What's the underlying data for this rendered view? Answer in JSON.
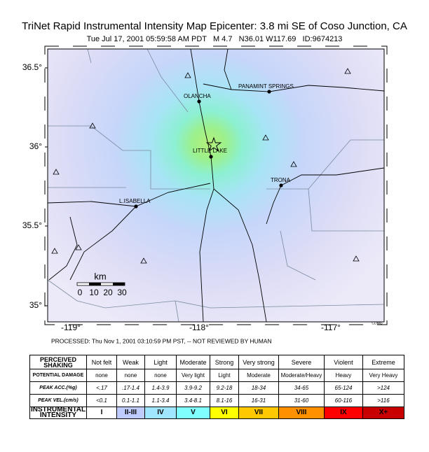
{
  "header": {
    "title": "TriNet Rapid Instrumental Intensity Map Epicenter: 3.8 mi SE of Coso Junction, CA",
    "subtitle": "Tue Jul 17, 2001 05:59:58 AM PDT   M 4.7   N36.01 W117.69   ID:9674213"
  },
  "map": {
    "lat_labels": [
      "36.5°",
      "36°",
      "35.5°",
      "35°"
    ],
    "lon_labels": [
      "-119°",
      "-118°",
      "-117°"
    ],
    "places": [
      "OLANCHA",
      "PANAMINT SPRINGS",
      "LITTLE LAKE",
      "TRONA",
      "L.ISABELLA"
    ],
    "scale_unit": "km",
    "scale_ticks": [
      "0",
      "10",
      "20",
      "30"
    ],
    "credit": "CDMG"
  },
  "processed": "PROCESSED: Thu Nov 1, 2001 03:10:59 PM PST, -- NOT REVIEWED BY HUMAN",
  "table": {
    "rows": [
      [
        "PERCEIVED SHAKING",
        "Not felt",
        "Weak",
        "Light",
        "Moderate",
        "Strong",
        "Very strong",
        "Severe",
        "Violent",
        "Extreme"
      ],
      [
        "POTENTIAL DAMAGE",
        "none",
        "none",
        "none",
        "Very light",
        "Light",
        "Moderate",
        "Moderate/Heavy",
        "Heavy",
        "Very Heavy"
      ],
      [
        "PEAK ACC.(%g)",
        "<.17",
        ".17-1.4",
        "1.4-3.9",
        "3.9-9.2",
        "9.2-18",
        "18-34",
        "34-65",
        "65-124",
        ">124"
      ],
      [
        "PEAK VEL.(cm/s)",
        "<0.1",
        "0.1-1.1",
        "1.1-3.4",
        "3.4-8.1",
        "8.1-16",
        "16-31",
        "31-60",
        "60-116",
        ">116"
      ],
      [
        "INSTRUMENTAL INTENSITY",
        "I",
        "II-III",
        "IV",
        "V",
        "VI",
        "VII",
        "VIII",
        "IX",
        "X+"
      ]
    ]
  }
}
